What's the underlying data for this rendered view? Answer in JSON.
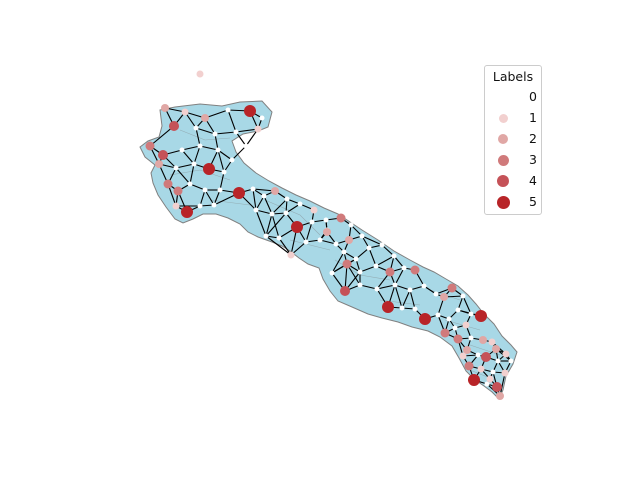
{
  "legend": {
    "title": "Labels",
    "entries": [
      {
        "label": "0",
        "color": "#ffffff"
      },
      {
        "label": "1",
        "color": "#f2d0cf"
      },
      {
        "label": "2",
        "color": "#e0a7a5"
      },
      {
        "label": "3",
        "color": "#d07a7b"
      },
      {
        "label": "4",
        "color": "#c55258"
      },
      {
        "label": "5",
        "color": "#b82428"
      }
    ]
  },
  "map": {
    "region_fill": "#a8d8e6",
    "region_border": "#808080",
    "edge_color": "#000000"
  }
}
